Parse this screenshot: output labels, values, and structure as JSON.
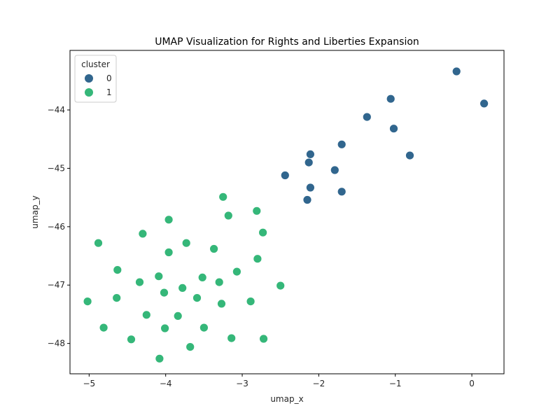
{
  "chart_data": {
    "type": "scatter",
    "title": "UMAP Visualization for Rights and Liberties Expansion",
    "xlabel": "umap_x",
    "ylabel": "umap_y",
    "xlim": [
      -5.25,
      0.42
    ],
    "ylim": [
      -48.52,
      -42.98
    ],
    "xticks": [
      -5,
      -4,
      -3,
      -2,
      -1,
      0
    ],
    "yticks": [
      -48,
      -47,
      -46,
      -45,
      -44
    ],
    "xtick_labels": [
      "−5",
      "−4",
      "−3",
      "−2",
      "−1",
      "0"
    ],
    "ytick_labels": [
      "−48",
      "−47",
      "−46",
      "−45",
      "−44"
    ],
    "grid": false,
    "legend": {
      "title": "cluster",
      "placement": "top-left"
    },
    "series": [
      {
        "name": "0",
        "color": "#31668e",
        "points": [
          [
            -0.2,
            -43.34
          ],
          [
            0.16,
            -43.89
          ],
          [
            -1.06,
            -43.81
          ],
          [
            -1.37,
            -44.12
          ],
          [
            -1.02,
            -44.32
          ],
          [
            -1.7,
            -44.59
          ],
          [
            -2.11,
            -44.76
          ],
          [
            -0.81,
            -44.78
          ],
          [
            -2.13,
            -44.9
          ],
          [
            -1.79,
            -45.03
          ],
          [
            -2.44,
            -45.12
          ],
          [
            -2.11,
            -45.33
          ],
          [
            -1.7,
            -45.4
          ],
          [
            -2.15,
            -45.54
          ]
        ]
      },
      {
        "name": "1",
        "color": "#35b779",
        "points": [
          [
            -3.25,
            -45.49
          ],
          [
            -2.81,
            -45.73
          ],
          [
            -3.18,
            -45.81
          ],
          [
            -3.96,
            -45.88
          ],
          [
            -2.73,
            -46.1
          ],
          [
            -4.3,
            -46.12
          ],
          [
            -4.88,
            -46.28
          ],
          [
            -3.73,
            -46.28
          ],
          [
            -3.37,
            -46.38
          ],
          [
            -3.96,
            -46.44
          ],
          [
            -2.8,
            -46.55
          ],
          [
            -4.63,
            -46.74
          ],
          [
            -3.07,
            -46.77
          ],
          [
            -4.09,
            -46.85
          ],
          [
            -3.52,
            -46.87
          ],
          [
            -4.34,
            -46.95
          ],
          [
            -3.3,
            -46.95
          ],
          [
            -2.5,
            -47.01
          ],
          [
            -3.78,
            -47.05
          ],
          [
            -4.02,
            -47.13
          ],
          [
            -4.64,
            -47.22
          ],
          [
            -3.59,
            -47.22
          ],
          [
            -5.02,
            -47.28
          ],
          [
            -2.89,
            -47.28
          ],
          [
            -3.27,
            -47.32
          ],
          [
            -4.25,
            -47.51
          ],
          [
            -3.84,
            -47.53
          ],
          [
            -4.81,
            -47.73
          ],
          [
            -3.5,
            -47.73
          ],
          [
            -4.01,
            -47.74
          ],
          [
            -3.14,
            -47.91
          ],
          [
            -2.72,
            -47.92
          ],
          [
            -4.45,
            -47.93
          ],
          [
            -3.68,
            -48.06
          ],
          [
            -4.08,
            -48.26
          ]
        ]
      }
    ]
  }
}
